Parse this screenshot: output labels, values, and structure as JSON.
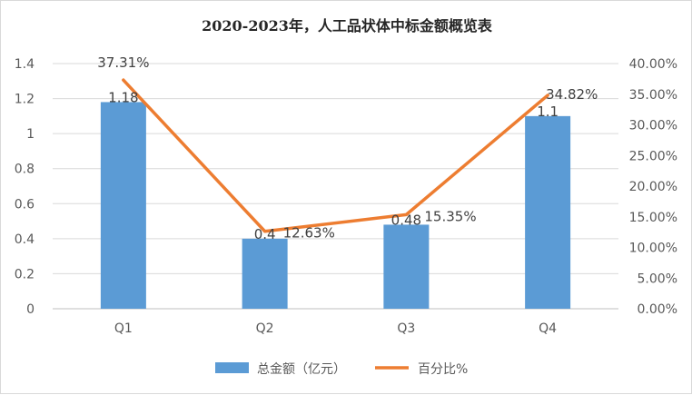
{
  "chart_data": {
    "type": "bar+line",
    "title": "2020-2023年，人工品状体中标金额概览表",
    "categories": [
      "Q1",
      "Q2",
      "Q3",
      "Q4"
    ],
    "series": [
      {
        "name": "总金额（亿元）",
        "type": "bar",
        "axis": "left",
        "values": [
          1.18,
          0.4,
          0.48,
          1.1
        ],
        "labels": [
          "1.18",
          "0.4",
          "0.48",
          "1.1"
        ],
        "color": "#5b9bd5"
      },
      {
        "name": "百分比%",
        "type": "line",
        "axis": "right",
        "values": [
          37.31,
          12.63,
          15.35,
          34.82
        ],
        "labels": [
          "37.31%",
          "12.63%",
          "15.35%",
          "34.82%"
        ],
        "color": "#ed7d31"
      }
    ],
    "y_left": {
      "min": 0,
      "max": 1.4,
      "ticks": [
        "0",
        "0.2",
        "0.4",
        "0.6",
        "0.8",
        "1",
        "1.2",
        "1.4"
      ]
    },
    "y_right": {
      "min": 0,
      "max": 40,
      "ticks": [
        "0.00%",
        "5.00%",
        "10.00%",
        "15.00%",
        "20.00%",
        "25.00%",
        "30.00%",
        "35.00%",
        "40.00%"
      ]
    },
    "grid": true,
    "legend": "bottom"
  }
}
